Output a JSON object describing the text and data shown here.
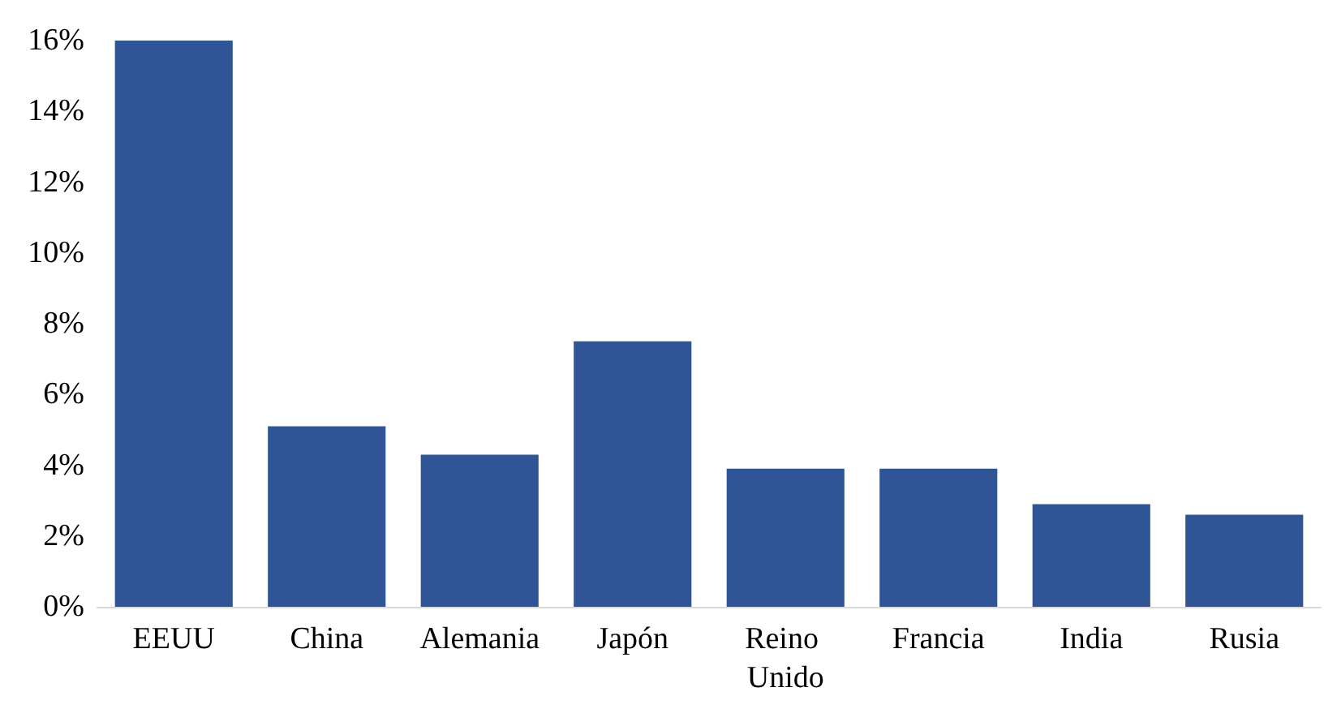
{
  "chart_data": {
    "type": "bar",
    "categories": [
      "EEUU",
      "China",
      "Alemania",
      "Japón",
      "Reino Unido",
      "Francia",
      "India",
      "Rusia"
    ],
    "values": [
      16.0,
      5.1,
      4.3,
      7.5,
      3.9,
      3.9,
      2.9,
      2.6
    ],
    "color": "#2f5597",
    "ylim": [
      0,
      16
    ],
    "yticks": [
      {
        "value": 0,
        "label": "0%"
      },
      {
        "value": 2,
        "label": "2%"
      },
      {
        "value": 4,
        "label": "4%"
      },
      {
        "value": 6,
        "label": "6%"
      },
      {
        "value": 8,
        "label": "8%"
      },
      {
        "value": 10,
        "label": "10%"
      },
      {
        "value": 12,
        "label": "12%"
      },
      {
        "value": 14,
        "label": "14%"
      },
      {
        "value": 16,
        "label": "16%"
      }
    ],
    "grid": false
  }
}
